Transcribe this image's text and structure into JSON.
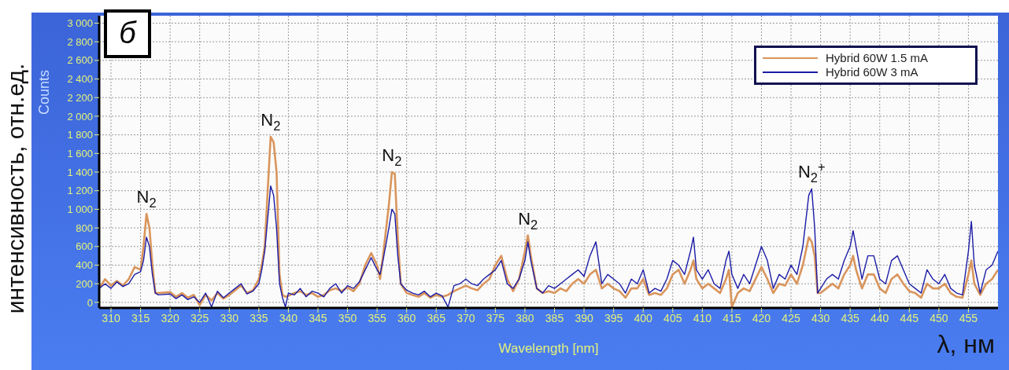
{
  "chart_data": {
    "type": "line",
    "xlabel": "Wavelength [nm]",
    "ylabel": "Counts",
    "xlim": [
      308,
      460
    ],
    "xticks": [
      310,
      315,
      320,
      325,
      330,
      335,
      340,
      345,
      350,
      355,
      360,
      365,
      370,
      375,
      380,
      385,
      390,
      395,
      400,
      405,
      410,
      415,
      420,
      425,
      430,
      435,
      440,
      445,
      450,
      455
    ],
    "ylim": [
      -60,
      3080
    ],
    "yticks": [
      0,
      200,
      400,
      600,
      800,
      {
        "value": 1000,
        "label": "1 000"
      },
      {
        "value": 1200,
        "label": "1 200"
      },
      {
        "value": 1400,
        "label": "1 400"
      },
      {
        "value": 1600,
        "label": "1 600"
      },
      {
        "value": 1800,
        "label": "1 800"
      },
      {
        "value": 2000,
        "label": "2 000"
      },
      {
        "value": 2200,
        "label": "2 200"
      },
      {
        "value": 2400,
        "label": "2 400"
      },
      {
        "value": 2600,
        "label": "2 600"
      },
      {
        "value": 2800,
        "label": "2 800"
      },
      {
        "value": 3000,
        "label": "3 000"
      }
    ],
    "grid": true,
    "legend": "top right",
    "marker": "none",
    "line_style": "solid",
    "annotations": [
      "б",
      "интенсивность, отн.ед.",
      "λ, нм",
      {
        "text": "N$_{2}$",
        "x": 316,
        "y": 950
      },
      {
        "text": "N$_{2}$",
        "x": 337,
        "y": 1780
      },
      {
        "text": "N$_{2}$",
        "x": 357.5,
        "y": 1400
      },
      {
        "text": "N$_{2}$",
        "x": 380.5,
        "y": 720
      },
      {
        "text": "N$_{2}$$^{+}$",
        "x": 428.5,
        "y": 1220
      }
    ],
    "x": [
      308,
      309,
      310,
      311,
      312,
      313,
      314,
      315,
      315.5,
      316,
      316.5,
      317,
      317.5,
      318,
      320,
      321,
      322,
      323,
      324,
      325,
      326,
      327,
      328,
      329,
      330,
      331,
      332,
      333,
      334,
      335,
      335.5,
      336,
      336.5,
      337,
      337.5,
      338,
      338.5,
      339,
      339.5,
      340,
      341,
      342,
      343,
      344,
      345,
      346,
      347,
      348,
      349,
      350,
      351,
      352,
      353,
      354,
      355,
      355.5,
      356,
      357,
      357.5,
      358,
      358.5,
      359,
      360,
      361,
      362,
      363,
      364,
      365,
      366,
      367,
      368,
      369,
      370,
      371,
      372,
      373,
      374,
      375,
      376,
      377,
      378,
      379,
      380,
      380.5,
      381,
      382,
      383,
      384,
      385,
      386,
      387,
      388,
      389,
      390,
      391,
      392,
      393,
      394,
      395,
      396,
      397,
      398,
      399,
      400,
      401,
      402,
      403,
      404,
      405,
      406,
      407,
      408,
      408.5,
      409,
      410,
      411,
      412,
      413,
      414,
      414.5,
      415,
      416,
      417,
      418,
      419,
      420,
      421,
      422,
      423,
      424,
      425,
      426,
      427,
      428,
      428.5,
      429,
      429.5,
      430,
      431,
      432,
      433,
      434,
      435,
      435.5,
      436,
      437,
      438,
      439,
      440,
      441,
      442,
      443,
      444,
      445,
      446,
      447,
      448,
      449,
      450,
      451,
      452,
      453,
      454,
      455,
      455.5,
      456,
      457,
      458,
      459,
      460
    ],
    "series": [
      {
        "name": "Hybrid 60W 1.5 mA",
        "color": "#d9955c",
        "values": [
          150,
          250,
          180,
          230,
          180,
          250,
          380,
          350,
          600,
          950,
          800,
          400,
          100,
          100,
          110,
          60,
          100,
          50,
          80,
          -30,
          80,
          20,
          100,
          40,
          80,
          130,
          180,
          100,
          130,
          250,
          400,
          600,
          1200,
          1780,
          1720,
          1400,
          300,
          80,
          60,
          70,
          100,
          120,
          80,
          100,
          60,
          80,
          130,
          150,
          120,
          160,
          120,
          200,
          400,
          530,
          400,
          250,
          500,
          1050,
          1400,
          1380,
          700,
          200,
          100,
          80,
          60,
          100,
          50,
          80,
          60,
          80,
          120,
          150,
          180,
          150,
          130,
          200,
          250,
          400,
          500,
          250,
          120,
          250,
          550,
          720,
          500,
          150,
          100,
          120,
          100,
          150,
          120,
          200,
          250,
          200,
          300,
          350,
          150,
          200,
          150,
          120,
          50,
          150,
          150,
          250,
          80,
          100,
          80,
          150,
          300,
          350,
          200,
          350,
          450,
          250,
          150,
          200,
          150,
          100,
          250,
          350,
          -50,
          100,
          150,
          120,
          250,
          380,
          250,
          100,
          200,
          180,
          300,
          200,
          400,
          700,
          650,
          500,
          100,
          100,
          150,
          200,
          150,
          300,
          400,
          500,
          350,
          150,
          300,
          300,
          150,
          100,
          250,
          300,
          200,
          120,
          100,
          50,
          200,
          150,
          150,
          200,
          100,
          60,
          50,
          300,
          450,
          200,
          80,
          200,
          250,
          350
        ]
      },
      {
        "name": "Hybrid 60W 3 mA",
        "color": "#1c1ca6",
        "values": [
          150,
          200,
          150,
          220,
          170,
          200,
          300,
          330,
          450,
          700,
          600,
          300,
          100,
          80,
          90,
          40,
          80,
          30,
          60,
          0,
          100,
          -50,
          120,
          50,
          100,
          150,
          200,
          90,
          120,
          200,
          350,
          550,
          900,
          1250,
          1150,
          800,
          200,
          50,
          -50,
          100,
          80,
          150,
          60,
          120,
          100,
          60,
          150,
          200,
          100,
          180,
          150,
          220,
          350,
          480,
          350,
          300,
          450,
          800,
          1000,
          950,
          500,
          200,
          130,
          100,
          80,
          120,
          60,
          100,
          70,
          -50,
          180,
          200,
          250,
          200,
          180,
          250,
          300,
          350,
          450,
          200,
          150,
          250,
          450,
          650,
          450,
          150,
          100,
          180,
          150,
          200,
          250,
          300,
          350,
          280,
          500,
          650,
          200,
          300,
          250,
          200,
          100,
          250,
          200,
          350,
          100,
          150,
          120,
          250,
          450,
          400,
          300,
          550,
          700,
          350,
          250,
          350,
          200,
          150,
          450,
          550,
          300,
          150,
          300,
          200,
          400,
          600,
          450,
          150,
          300,
          250,
          400,
          300,
          600,
          1150,
          1220,
          800,
          100,
          150,
          250,
          300,
          250,
          450,
          600,
          770,
          600,
          250,
          500,
          500,
          250,
          200,
          450,
          500,
          350,
          200,
          150,
          100,
          350,
          250,
          200,
          300,
          150,
          100,
          80,
          550,
          870,
          400,
          100,
          350,
          400,
          550
        ]
      }
    ]
  }
}
